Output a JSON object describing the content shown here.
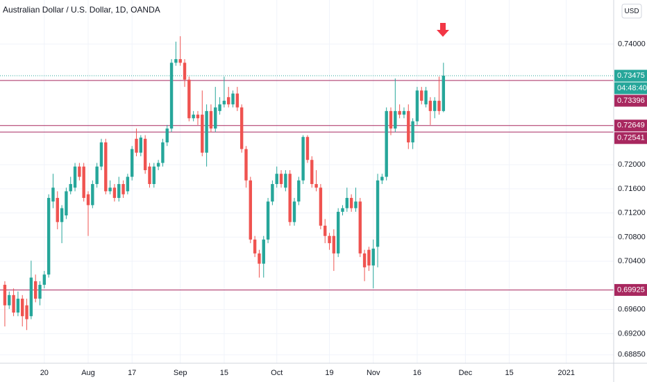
{
  "chart_data": {
    "type": "candlestick",
    "title": "Australian Dollar / U.S. Dollar, 1D, OANDA",
    "currency": "USD",
    "up_color": "#26a69a",
    "down_color": "#ef5350",
    "level_color": "#a8285f",
    "xlim": [
      -1.1,
      138.8
    ],
    "xticks": [
      {
        "value": 9,
        "label": "20"
      },
      {
        "value": 19,
        "label": "Aug"
      },
      {
        "value": 29,
        "label": "17"
      },
      {
        "value": 40,
        "label": "Sep"
      },
      {
        "value": 50,
        "label": "15"
      },
      {
        "value": 62,
        "label": "Oct"
      },
      {
        "value": 74,
        "label": "19"
      },
      {
        "value": 84,
        "label": "Nov"
      },
      {
        "value": 94,
        "label": "16"
      },
      {
        "value": 105,
        "label": "Dec"
      },
      {
        "value": 115,
        "label": "15"
      },
      {
        "value": 128,
        "label": "2021"
      }
    ],
    "ylim": [
      0.6871,
      0.7473
    ],
    "yticks": [
      {
        "value": 0.74,
        "label": "0.74000"
      },
      {
        "value": 0.72,
        "label": "0.72000"
      },
      {
        "value": 0.716,
        "label": "0.71600"
      },
      {
        "value": 0.712,
        "label": "0.71200"
      },
      {
        "value": 0.708,
        "label": "0.70800"
      },
      {
        "value": 0.704,
        "label": "0.70400"
      },
      {
        "value": 0.696,
        "label": "0.69600"
      },
      {
        "value": 0.692,
        "label": "0.69200"
      },
      {
        "value": 0.6885,
        "label": "0.68850"
      }
    ],
    "last_price": {
      "value": 0.73475,
      "label": "0.73475"
    },
    "countdown": "04:48:40",
    "levels": [
      {
        "value": 0.73396,
        "label": "0.73396"
      },
      {
        "value": 0.72649,
        "label": "0.72649"
      },
      {
        "value": 0.72541,
        "label": "0.72541"
      },
      {
        "value": 0.69925,
        "label": "0.69925"
      }
    ],
    "ohlc": [
      [
        0.7001,
        0.7007,
        0.6932,
        0.6967
      ],
      [
        0.6967,
        0.699,
        0.6961,
        0.6984
      ],
      [
        0.6984,
        0.6995,
        0.6949,
        0.6955
      ],
      [
        0.6955,
        0.699,
        0.6949,
        0.6978
      ],
      [
        0.6978,
        0.6984,
        0.6932,
        0.6949
      ],
      [
        0.6967,
        0.6978,
        0.6926,
        0.6944
      ],
      [
        0.6949,
        0.7041,
        0.6944,
        0.7013
      ],
      [
        0.7007,
        0.7018,
        0.6972,
        0.6978
      ],
      [
        0.6978,
        0.7007,
        0.6967,
        0.7001
      ],
      [
        0.7001,
        0.7024,
        0.6995,
        0.7018
      ],
      [
        0.7018,
        0.7151,
        0.7013,
        0.7145
      ],
      [
        0.7139,
        0.7185,
        0.7128,
        0.7162
      ],
      [
        0.7145,
        0.7156,
        0.7093,
        0.7105
      ],
      [
        0.7105,
        0.7133,
        0.707,
        0.7128
      ],
      [
        0.7116,
        0.7162,
        0.711,
        0.7156
      ],
      [
        0.7156,
        0.718,
        0.7151,
        0.7168
      ],
      [
        0.7162,
        0.7203,
        0.7156,
        0.7197
      ],
      [
        0.7197,
        0.7203,
        0.7174,
        0.718
      ],
      [
        0.7197,
        0.7203,
        0.7139,
        0.7145
      ],
      [
        0.7151,
        0.7156,
        0.7082,
        0.7133
      ],
      [
        0.7133,
        0.7174,
        0.7128,
        0.7168
      ],
      [
        0.7168,
        0.7203,
        0.7162,
        0.7197
      ],
      [
        0.7197,
        0.7243,
        0.7191,
        0.7237
      ],
      [
        0.7237,
        0.7243,
        0.7151,
        0.7156
      ],
      [
        0.7156,
        0.7174,
        0.7151,
        0.7162
      ],
      [
        0.7162,
        0.7168,
        0.7139,
        0.7145
      ],
      [
        0.7145,
        0.718,
        0.7139,
        0.7168
      ],
      [
        0.7168,
        0.7174,
        0.7145,
        0.7151
      ],
      [
        0.7156,
        0.7185,
        0.7151,
        0.718
      ],
      [
        0.718,
        0.7231,
        0.7174,
        0.7226
      ],
      [
        0.7243,
        0.726,
        0.7214,
        0.722
      ],
      [
        0.722,
        0.7249,
        0.7214,
        0.7245
      ],
      [
        0.7243,
        0.7249,
        0.7185,
        0.7191
      ],
      [
        0.7197,
        0.7203,
        0.7162,
        0.7168
      ],
      [
        0.7168,
        0.7203,
        0.7162,
        0.7197
      ],
      [
        0.7197,
        0.7208,
        0.7191,
        0.7203
      ],
      [
        0.7203,
        0.7243,
        0.7197,
        0.7237
      ],
      [
        0.7237,
        0.7266,
        0.7231,
        0.726
      ],
      [
        0.726,
        0.7375,
        0.7254,
        0.7369
      ],
      [
        0.7369,
        0.7404,
        0.7364,
        0.7375
      ],
      [
        0.7375,
        0.7413,
        0.7364,
        0.7369
      ],
      [
        0.7369,
        0.7375,
        0.7329,
        0.7341
      ],
      [
        0.7341,
        0.7346,
        0.7272,
        0.7277
      ],
      [
        0.7277,
        0.7289,
        0.7272,
        0.7283
      ],
      [
        0.7283,
        0.7289,
        0.7266,
        0.7277
      ],
      [
        0.7283,
        0.7323,
        0.7214,
        0.722
      ],
      [
        0.722,
        0.73,
        0.7197,
        0.7289
      ],
      [
        0.7289,
        0.73,
        0.7254,
        0.726
      ],
      [
        0.726,
        0.7329,
        0.7254,
        0.7295
      ],
      [
        0.7289,
        0.7312,
        0.7283,
        0.73
      ],
      [
        0.73,
        0.7346,
        0.7295,
        0.7306
      ],
      [
        0.7312,
        0.7329,
        0.7295,
        0.73
      ],
      [
        0.73,
        0.7323,
        0.7295,
        0.7318
      ],
      [
        0.7318,
        0.7329,
        0.7289,
        0.7295
      ],
      [
        0.7295,
        0.73,
        0.722,
        0.7226
      ],
      [
        0.7226,
        0.7231,
        0.7162,
        0.7174
      ],
      [
        0.7174,
        0.718,
        0.707,
        0.7076
      ],
      [
        0.7076,
        0.7082,
        0.7047,
        0.7053
      ],
      [
        0.7053,
        0.7059,
        0.7013,
        0.7036
      ],
      [
        0.7036,
        0.7082,
        0.7013,
        0.7076
      ],
      [
        0.7076,
        0.7145,
        0.707,
        0.7139
      ],
      [
        0.7139,
        0.7174,
        0.7133,
        0.7168
      ],
      [
        0.7168,
        0.7197,
        0.7162,
        0.7185
      ],
      [
        0.7185,
        0.7191,
        0.7162,
        0.7168
      ],
      [
        0.7162,
        0.7191,
        0.7156,
        0.7185
      ],
      [
        0.7185,
        0.7191,
        0.7099,
        0.7105
      ],
      [
        0.7105,
        0.7145,
        0.7099,
        0.7139
      ],
      [
        0.7139,
        0.718,
        0.7133,
        0.7174
      ],
      [
        0.7174,
        0.7249,
        0.7168,
        0.7246
      ],
      [
        0.7246,
        0.7249,
        0.7203,
        0.7208
      ],
      [
        0.7208,
        0.7214,
        0.7162,
        0.7168
      ],
      [
        0.7168,
        0.7191,
        0.7156,
        0.7162
      ],
      [
        0.7162,
        0.7168,
        0.7093,
        0.7099
      ],
      [
        0.7099,
        0.711,
        0.707,
        0.7082
      ],
      [
        0.7082,
        0.7087,
        0.7059,
        0.707
      ],
      [
        0.7082,
        0.7093,
        0.7024,
        0.7053
      ],
      [
        0.7053,
        0.7128,
        0.7047,
        0.7122
      ],
      [
        0.7122,
        0.7133,
        0.7116,
        0.7128
      ],
      [
        0.7128,
        0.7162,
        0.7122,
        0.7145
      ],
      [
        0.7145,
        0.7151,
        0.7122,
        0.7128
      ],
      [
        0.7128,
        0.7162,
        0.7122,
        0.7139
      ],
      [
        0.7139,
        0.7145,
        0.7047,
        0.7053
      ],
      [
        0.7053,
        0.7059,
        0.7007,
        0.703
      ],
      [
        0.7059,
        0.7064,
        0.7024,
        0.7033
      ],
      [
        0.7033,
        0.7076,
        0.6995,
        0.7061
      ],
      [
        0.7064,
        0.7185,
        0.703,
        0.7174
      ],
      [
        0.7174,
        0.7185,
        0.7168,
        0.718
      ],
      [
        0.718,
        0.7295,
        0.7174,
        0.7289
      ],
      [
        0.7289,
        0.7295,
        0.7249,
        0.726
      ],
      [
        0.726,
        0.7343,
        0.7254,
        0.7289
      ],
      [
        0.7289,
        0.73,
        0.7277,
        0.7283
      ],
      [
        0.7283,
        0.7295,
        0.7277,
        0.7289
      ],
      [
        0.7289,
        0.73,
        0.7226,
        0.7237
      ],
      [
        0.7237,
        0.7277,
        0.7226,
        0.7272
      ],
      [
        0.7272,
        0.7329,
        0.7266,
        0.7323
      ],
      [
        0.7323,
        0.7329,
        0.73,
        0.7306
      ],
      [
        0.73,
        0.7329,
        0.7295,
        0.7323
      ],
      [
        0.7306,
        0.7312,
        0.7266,
        0.7289
      ],
      [
        0.7289,
        0.7312,
        0.7277,
        0.7306
      ],
      [
        0.7306,
        0.7346,
        0.7283,
        0.7289
      ],
      [
        0.7289,
        0.7369,
        0.7287,
        0.73475
      ]
    ]
  }
}
